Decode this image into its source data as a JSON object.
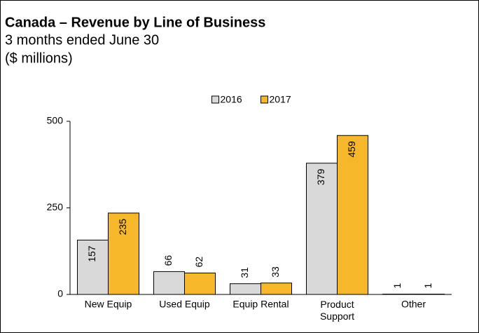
{
  "chart_data": {
    "type": "bar",
    "title": "Canada – Revenue by Line of Business",
    "subtitle": [
      "3 months ended June 30",
      "($ millions)"
    ],
    "categories": [
      "New Equip",
      "Used Equip",
      "Equip Rental",
      "Product\nSupport",
      "Other"
    ],
    "series": [
      {
        "name": "2016",
        "color": "#d9d9d9",
        "values": [
          157,
          66,
          31,
          379,
          1
        ]
      },
      {
        "name": "2017",
        "color": "#f6b82a",
        "values": [
          235,
          62,
          33,
          459,
          1
        ]
      }
    ],
    "ylim": [
      0,
      500
    ],
    "yticks": [
      0,
      250,
      500
    ],
    "grid": false,
    "legend": "top"
  }
}
